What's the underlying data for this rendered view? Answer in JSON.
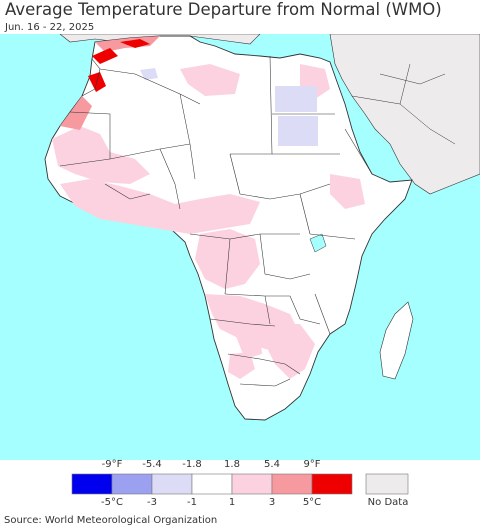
{
  "title": "Average Temperature Departure from Normal (WMO)",
  "subtitle": "Jun. 16 - 22, 2025",
  "legend": {
    "fahrenheit_labels": [
      "-9°F",
      "-5.4",
      "-1.8",
      "1.8",
      "5.4",
      "9°F"
    ],
    "celsius_labels": [
      "-5°C",
      "-3",
      "-1",
      "1",
      "3",
      "5°C"
    ],
    "colors": [
      "#0000ee",
      "#9ca0f0",
      "#dcdcf7",
      "#ffffff",
      "#fcd2e0",
      "#f79aa0",
      "#ee0000"
    ],
    "no_data_label": "No Data",
    "no_data_color": "#eeebec"
  },
  "colors": {
    "ocean": "#a6ffff",
    "land": "#ffffff",
    "no_data_land": "#eeebec",
    "border": "#222222"
  },
  "source": "Source: World Meteorological Organization"
}
